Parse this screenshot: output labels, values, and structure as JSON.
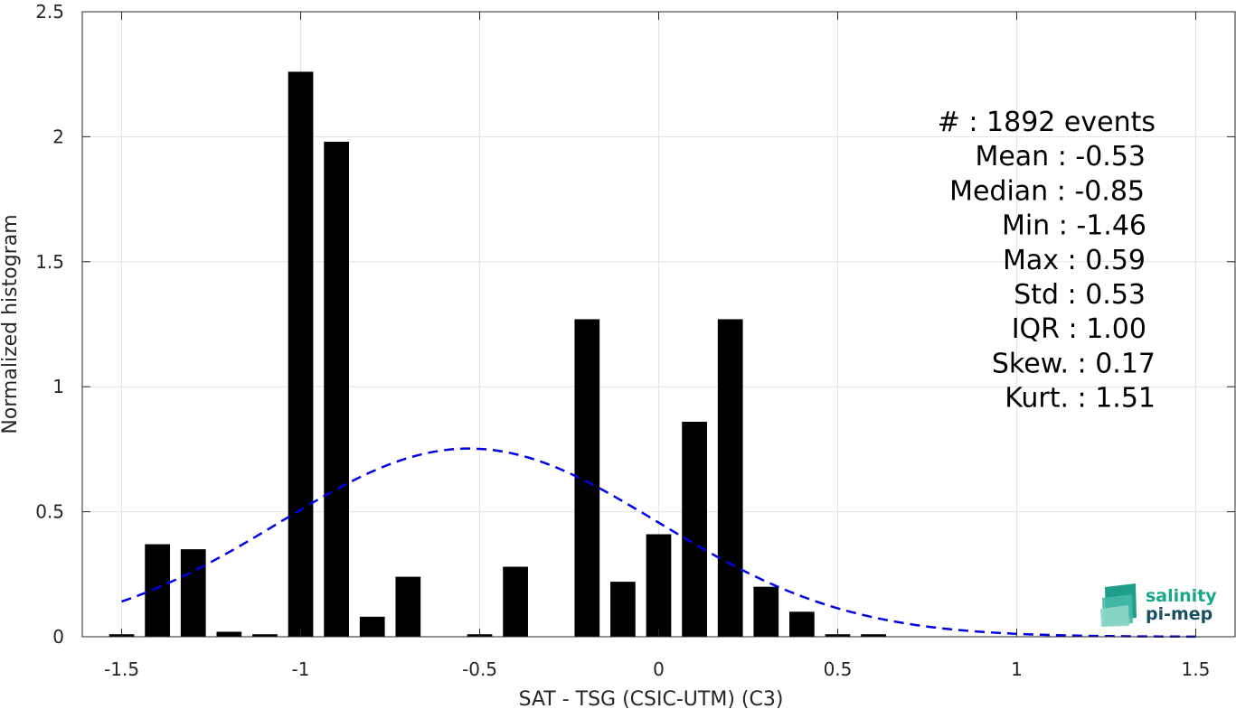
{
  "chart_data": {
    "type": "bar",
    "xlabel": "SAT - TSG (CSIC-UTM) (C3)",
    "ylabel": "Normalized histogram",
    "xlim": [
      -1.61,
      1.61
    ],
    "ylim": [
      0,
      2.5
    ],
    "x_ticks": [
      -1.5,
      -1,
      -0.5,
      0,
      0.5,
      1,
      1.5
    ],
    "x_tick_labels": [
      "-1.5",
      "-1",
      "-0.5",
      "0",
      "0.5",
      "1",
      "1.5"
    ],
    "y_ticks": [
      0,
      0.5,
      1,
      1.5,
      2,
      2.5
    ],
    "y_tick_labels": [
      "0",
      "0.5",
      "1",
      "1.5",
      "2",
      "2.5"
    ],
    "grid": true,
    "bar_width": 0.07,
    "bar_color": "#000000",
    "bars": [
      {
        "x": -1.5,
        "value": 0.01
      },
      {
        "x": -1.4,
        "value": 0.37
      },
      {
        "x": -1.3,
        "value": 0.35
      },
      {
        "x": -1.2,
        "value": 0.02
      },
      {
        "x": -1.1,
        "value": 0.01
      },
      {
        "x": -1.0,
        "value": 2.26
      },
      {
        "x": -0.9,
        "value": 1.98
      },
      {
        "x": -0.8,
        "value": 0.08
      },
      {
        "x": -0.7,
        "value": 0.24
      },
      {
        "x": -0.5,
        "value": 0.01
      },
      {
        "x": -0.4,
        "value": 0.28
      },
      {
        "x": -0.2,
        "value": 1.27
      },
      {
        "x": -0.1,
        "value": 0.22
      },
      {
        "x": 0.0,
        "value": 0.41
      },
      {
        "x": 0.1,
        "value": 0.86
      },
      {
        "x": 0.2,
        "value": 1.27
      },
      {
        "x": 0.3,
        "value": 0.2
      },
      {
        "x": 0.4,
        "value": 0.1
      },
      {
        "x": 0.5,
        "value": 0.01
      },
      {
        "x": 0.6,
        "value": 0.01
      }
    ],
    "fit_curve": {
      "style": "dashed",
      "color": "#0000e6",
      "mean": -0.53,
      "std": 0.53,
      "x_range": [
        -1.5,
        1.5
      ]
    },
    "stats": [
      {
        "label": "#  ",
        "value": "1892 events"
      },
      {
        "label": "Mean",
        "value": "-0.53"
      },
      {
        "label": "Median",
        "value": "-0.85"
      },
      {
        "label": "Min",
        "value": "-1.46"
      },
      {
        "label": "Max",
        "value": "0.59"
      },
      {
        "label": "Std",
        "value": "0.53"
      },
      {
        "label": "IQR",
        "value": "1.00"
      },
      {
        "label": "Skew.",
        "value": "0.17"
      },
      {
        "label": "Kurt.",
        "value": "1.51"
      }
    ]
  },
  "logo": {
    "line1": "salinity",
    "line2": "pi-mep",
    "color1": "#1aa88a",
    "color2": "#1b4f63"
  }
}
